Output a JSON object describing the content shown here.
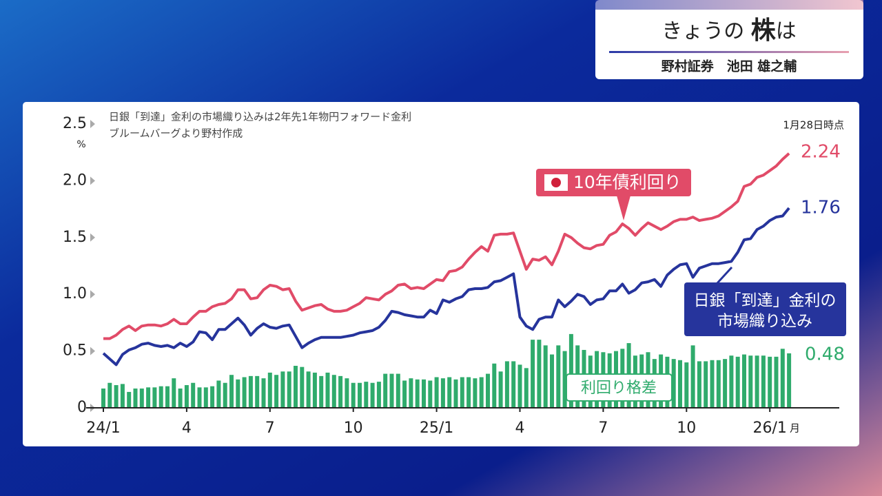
{
  "header": {
    "title": [
      "きょうの ",
      "株",
      "は"
    ],
    "guest": "野村証券　池田 雄之輔"
  },
  "chart_data": {
    "type": "line",
    "notes": [
      "日銀「到達」金利の市場織り込みは2年先1年物円フォワード金利",
      "ブルームバーグより野村作成"
    ],
    "as_of": "1月28日時点",
    "y_unit": "%",
    "x_unit": "月",
    "ylim": [
      0,
      2.5
    ],
    "yticks": [
      0,
      0.5,
      {
        "value": 1,
        "label": "1.0"
      },
      1.5,
      {
        "value": 2,
        "label": "2.0"
      },
      2.5
    ],
    "categories": [
      "24/1",
      null,
      null,
      null,
      null,
      null,
      null,
      null,
      null,
      null,
      null,
      null,
      null,
      "4",
      null,
      null,
      null,
      null,
      null,
      null,
      null,
      null,
      null,
      null,
      null,
      null,
      "7",
      null,
      null,
      null,
      null,
      null,
      null,
      null,
      null,
      null,
      null,
      null,
      null,
      "10",
      null,
      null,
      null,
      null,
      null,
      null,
      null,
      null,
      null,
      null,
      null,
      null,
      "25/1",
      null,
      null,
      null,
      null,
      null,
      null,
      null,
      null,
      null,
      null,
      null,
      null,
      "4",
      null,
      null,
      null,
      null,
      null,
      null,
      null,
      null,
      null,
      null,
      null,
      null,
      "7",
      null,
      null,
      null,
      null,
      null,
      null,
      null,
      null,
      null,
      null,
      null,
      null,
      "10",
      null,
      null,
      null,
      null,
      null,
      null,
      null,
      null,
      null,
      null,
      null,
      null,
      "26/1",
      null,
      null,
      null
    ],
    "series": [
      {
        "name": [
          "10年債利回り"
        ],
        "type": "line",
        "color": "#e14b68",
        "values": [
          0.61,
          0.61,
          0.64,
          0.69,
          0.72,
          0.68,
          0.72,
          0.73,
          0.73,
          0.72,
          0.74,
          0.78,
          0.74,
          0.74,
          0.8,
          0.85,
          0.85,
          0.89,
          0.91,
          0.92,
          0.96,
          1.04,
          1.04,
          0.96,
          0.97,
          1.04,
          1.08,
          1.07,
          1.04,
          1.05,
          0.94,
          0.86,
          0.88,
          0.9,
          0.91,
          0.87,
          0.85,
          0.85,
          0.86,
          0.89,
          0.92,
          0.97,
          0.96,
          0.95,
          1.0,
          1.03,
          1.08,
          1.09,
          1.05,
          1.06,
          1.05,
          1.09,
          1.13,
          1.12,
          1.2,
          1.21,
          1.24,
          1.31,
          1.37,
          1.42,
          1.38,
          1.52,
          1.53,
          1.53,
          1.54,
          1.38,
          1.22,
          1.31,
          1.3,
          1.33,
          1.26,
          1.38,
          1.53,
          1.5,
          1.45,
          1.41,
          1.4,
          1.43,
          1.44,
          1.52,
          1.55,
          1.62,
          1.58,
          1.52,
          1.58,
          1.63,
          1.6,
          1.57,
          1.6,
          1.64,
          1.66,
          1.66,
          1.68,
          1.65,
          1.66,
          1.67,
          1.69,
          1.73,
          1.77,
          1.82,
          1.95,
          1.97,
          2.03,
          2.05,
          2.09,
          2.13,
          2.19,
          2.24
        ]
      },
      {
        "name": [
          "日銀「到達」金利の",
          "市場織り込み"
        ],
        "type": "line",
        "color": "#26349c",
        "values": [
          0.48,
          0.43,
          0.38,
          0.47,
          0.51,
          0.53,
          0.56,
          0.57,
          0.55,
          0.54,
          0.55,
          0.53,
          0.57,
          0.54,
          0.58,
          0.67,
          0.66,
          0.6,
          0.69,
          0.69,
          0.74,
          0.79,
          0.73,
          0.64,
          0.7,
          0.74,
          0.71,
          0.7,
          0.72,
          0.73,
          0.63,
          0.53,
          0.57,
          0.6,
          0.62,
          0.62,
          0.62,
          0.62,
          0.63,
          0.64,
          0.66,
          0.67,
          0.68,
          0.71,
          0.77,
          0.85,
          0.84,
          0.82,
          0.81,
          0.8,
          0.8,
          0.86,
          0.83,
          0.95,
          0.93,
          0.96,
          0.98,
          1.04,
          1.05,
          1.05,
          1.06,
          1.11,
          1.12,
          1.15,
          1.18,
          0.8,
          0.72,
          0.69,
          0.78,
          0.8,
          0.8,
          0.95,
          0.89,
          0.94,
          1.0,
          0.98,
          0.91,
          0.95,
          0.96,
          1.03,
          1.03,
          1.09,
          1.01,
          1.04,
          1.1,
          1.11,
          1.13,
          1.07,
          1.17,
          1.22,
          1.26,
          1.27,
          1.15,
          1.23,
          1.25,
          1.27,
          1.27,
          1.28,
          1.29,
          1.37,
          1.48,
          1.49,
          1.57,
          1.6,
          1.65,
          1.68,
          1.69,
          1.76
        ]
      },
      {
        "name": [
          "利回り格差"
        ],
        "type": "bar",
        "color": "#2fab6c",
        "values": [
          0.17,
          0.22,
          0.2,
          0.21,
          0.14,
          0.17,
          0.17,
          0.18,
          0.18,
          0.19,
          0.19,
          0.26,
          0.17,
          0.2,
          0.22,
          0.18,
          0.18,
          0.19,
          0.24,
          0.22,
          0.29,
          0.25,
          0.27,
          0.28,
          0.28,
          0.26,
          0.31,
          0.29,
          0.32,
          0.32,
          0.37,
          0.36,
          0.32,
          0.31,
          0.28,
          0.31,
          0.29,
          0.28,
          0.26,
          0.22,
          0.22,
          0.23,
          0.22,
          0.23,
          0.3,
          0.3,
          0.3,
          0.24,
          0.26,
          0.25,
          0.25,
          0.24,
          0.27,
          0.26,
          0.27,
          0.25,
          0.27,
          0.27,
          0.26,
          0.27,
          0.3,
          0.39,
          0.32,
          0.41,
          0.41,
          0.38,
          0.35,
          0.6,
          0.6,
          0.55,
          0.47,
          0.55,
          0.5,
          0.65,
          0.55,
          0.51,
          0.46,
          0.5,
          0.49,
          0.48,
          0.5,
          0.52,
          0.57,
          0.46,
          0.47,
          0.49,
          0.43,
          0.47,
          0.45,
          0.43,
          0.42,
          0.4,
          0.55,
          0.41,
          0.41,
          0.42,
          0.42,
          0.43,
          0.46,
          0.45,
          0.47,
          0.46,
          0.46,
          0.46,
          0.45,
          0.45,
          0.52,
          0.48
        ]
      }
    ]
  }
}
